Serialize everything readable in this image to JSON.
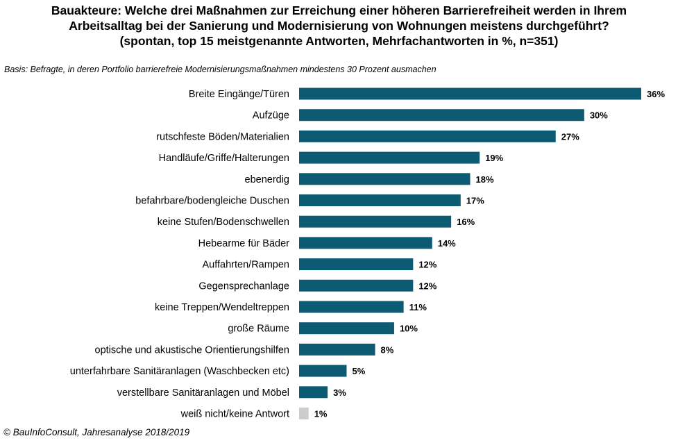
{
  "header": {
    "title_line1": "Bauakteure: Welche drei Maßnahmen zur Erreichung einer höheren Barrierefreiheit werden in Ihrem",
    "title_line2": "Arbeitsalltag bei der Sanierung und Modernisierung von Wohnungen meistens durchgeführt?",
    "title_line3": "(spontan, top 15 meistgenannte Antworten, Mehrfachantworten in %, n=351)",
    "basis": "Basis: Befragte, in deren Portfolio barrierefreie Modernisierungsmaßnahmen mindestens 30 Prozent ausmachen"
  },
  "footer": {
    "source": "© BauInfoConsult, Jahresanalyse 2018/2019"
  },
  "colors": {
    "bar": "#0d5a73",
    "bar_no_answer": "#cccccc"
  },
  "chart_data": {
    "type": "bar",
    "orientation": "horizontal",
    "unit": "%",
    "categories": [
      "Breite Eingänge/Türen",
      "Aufzüge",
      "rutschfeste Böden/Materialien",
      "Handläufe/Griffe/Halterungen",
      "ebenerdig",
      "befahrbare/bodengleiche Duschen",
      "keine Stufen/Bodenschwellen",
      "Hebearme für Bäder",
      "Auffahrten/Rampen",
      "Gegensprechanlage",
      "keine Treppen/Wendeltreppen",
      "große Räume",
      "optische und akustische Orientierungshilfen",
      "unterfahrbare Sanitäranlagen (Waschbecken etc)",
      "verstellbare Sanitäranlagen und Möbel",
      "weiß nicht/keine Antwort"
    ],
    "values": [
      36,
      30,
      27,
      19,
      18,
      17,
      16,
      14,
      12,
      12,
      11,
      10,
      8,
      5,
      3,
      1
    ],
    "data_labels": [
      "36%",
      "30%",
      "27%",
      "19%",
      "18%",
      "17%",
      "16%",
      "14%",
      "12%",
      "12%",
      "11%",
      "10%",
      "8%",
      "5%",
      "3%",
      "1%"
    ],
    "highlight_last_category_gray": true,
    "xlim": [
      0,
      36
    ],
    "grid": false,
    "legend": "none"
  }
}
